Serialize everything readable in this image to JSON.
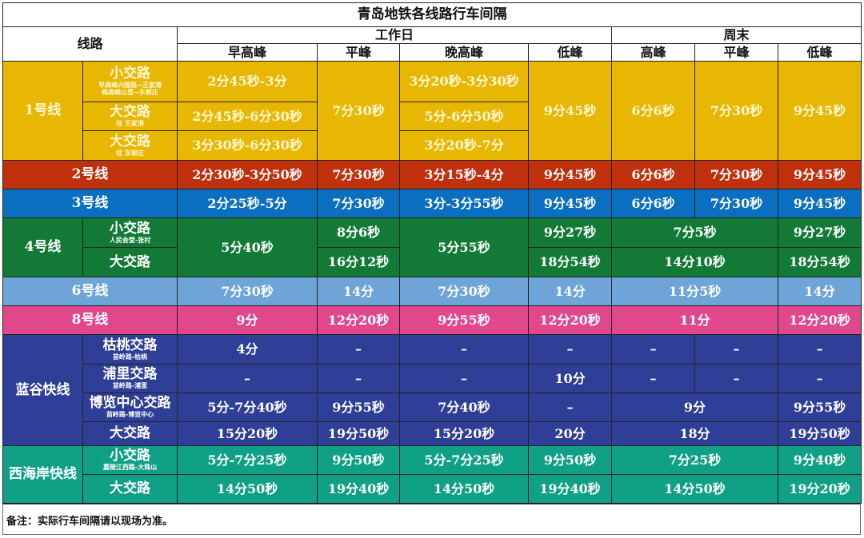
{
  "title": "青岛地铁各线路行车间隔",
  "headers": {
    "line": "线路",
    "workday": "工作日",
    "weekend": "周末",
    "wd": [
      "早高峰",
      "平峰",
      "晚高峰",
      "低峰"
    ],
    "we": [
      "高峰",
      "平峰",
      "低峰"
    ]
  },
  "colors": {
    "l1": "#e8b704",
    "l2": "#c1300d",
    "l3": "#0b6fc1",
    "l4": "#127a36",
    "l6": "#6ea4d8",
    "l8": "#e1478c",
    "lg": "#2f3e97",
    "wc": "#10a086"
  },
  "lines": {
    "l1": {
      "name": "1号线",
      "routes": [
        {
          "name": "小交路",
          "sub": [
            "早高峰兴国路→王家港",
            "晚高峰山里→东郭庄"
          ]
        },
        {
          "name": "大交路",
          "sub": [
            "往 王家港"
          ]
        },
        {
          "name": "大交路",
          "sub": [
            "往 东郭庄"
          ]
        }
      ],
      "rows": [
        [
          "2分45秒-3分",
          "7分30秒",
          "3分20秒-3分30秒",
          "9分45秒",
          "6分6秒",
          "7分30秒",
          "9分45秒"
        ],
        [
          "2分45秒-6分30秒",
          "5分-6分50秒"
        ],
        [
          "3分30秒-6分30秒",
          "3分20秒-7分"
        ]
      ]
    },
    "l2": {
      "name": "2号线",
      "rows": [
        [
          "2分30秒-3分50秒",
          "7分30秒",
          "3分15秒-4分",
          "9分45秒",
          "6分6秒",
          "7分30秒",
          "9分45秒"
        ]
      ]
    },
    "l3": {
      "name": "3号线",
      "rows": [
        [
          "2分25秒-5分",
          "7分30秒",
          "3分-3分55秒",
          "9分45秒",
          "6分6秒",
          "7分30秒",
          "9分45秒"
        ]
      ]
    },
    "l4": {
      "name": "4号线",
      "routes": [
        {
          "name": "小交路",
          "sub": [
            "人民会堂-张村"
          ]
        },
        {
          "name": "大交路"
        }
      ],
      "rows": [
        [
          "5分40秒",
          "8分6秒",
          "5分55秒",
          "9分27秒",
          "7分5秒",
          "9分27秒"
        ],
        [
          "16分12秒",
          "18分54秒",
          "14分10秒",
          "18分54秒"
        ]
      ]
    },
    "l6": {
      "name": "6号线",
      "rows": [
        [
          "7分30秒",
          "14分",
          "7分30秒",
          "14分",
          "11分5秒",
          "14分"
        ]
      ]
    },
    "l8": {
      "name": "8号线",
      "rows": [
        [
          "9分",
          "12分20秒",
          "9分55秒",
          "12分20秒",
          "11分",
          "12分20秒"
        ]
      ]
    },
    "lg": {
      "name": "蓝谷快线",
      "routes": [
        {
          "name": "枯桃交路",
          "sub": [
            "苗岭路-枯桃"
          ]
        },
        {
          "name": "浦里交路",
          "sub": [
            "苗岭路-浦里"
          ]
        },
        {
          "name": "博览中心交路",
          "sub": [
            "苗岭路-博览中心"
          ]
        },
        {
          "name": "大交路"
        }
      ],
      "rows": [
        [
          "4分",
          "–",
          "–",
          "–",
          "–",
          "–",
          "–"
        ],
        [
          "–",
          "–",
          "–",
          "10分",
          "–",
          "–",
          "–"
        ],
        [
          "5分-7分40秒",
          "9分55秒",
          "7分40秒",
          "–",
          "9分",
          "9分55秒"
        ],
        [
          "15分20秒",
          "19分50秒",
          "15分20秒",
          "20分",
          "18分",
          "19分50秒"
        ]
      ]
    },
    "wc": {
      "name": "西海岸快线",
      "routes": [
        {
          "name": "小交路",
          "sub": [
            "嘉陵江西路-大珠山"
          ]
        },
        {
          "name": "大交路"
        }
      ],
      "rows": [
        [
          "5分-7分25秒",
          "9分50秒",
          "5分-7分25秒",
          "9分50秒",
          "7分25秒",
          "9分40秒"
        ],
        [
          "14分50秒",
          "19分40秒",
          "14分50秒",
          "19分40秒",
          "14分50秒",
          "19分20秒"
        ]
      ]
    }
  },
  "note": "备注：实际行车间隔请以现场为准。"
}
